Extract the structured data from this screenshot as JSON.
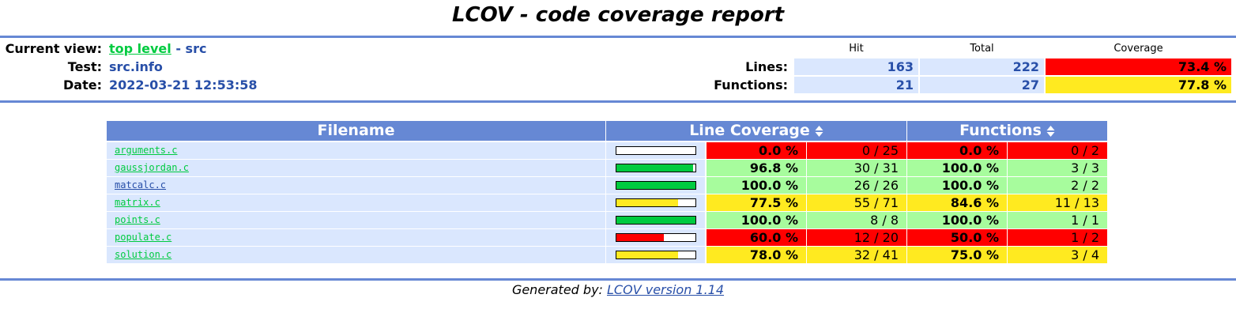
{
  "title": "LCOV - code coverage report",
  "info": {
    "current_view_label": "Current view:",
    "current_view_link": "top level",
    "current_view_rest": "- src",
    "test_label": "Test:",
    "test_value": "src.info",
    "date_label": "Date:",
    "date_value": "2022-03-21 12:53:58"
  },
  "summary": {
    "hit_header": "Hit",
    "total_header": "Total",
    "coverage_header": "Coverage",
    "lines_label": "Lines:",
    "lines_hit": "163",
    "lines_total": "222",
    "lines_coverage": "73.4 %",
    "functions_label": "Functions:",
    "functions_hit": "21",
    "functions_total": "27",
    "functions_coverage": "77.8 %"
  },
  "table": {
    "headers": {
      "filename": "Filename",
      "line_coverage": "Line Coverage",
      "functions": "Functions"
    },
    "rows": [
      {
        "file": "arguments.c",
        "bar_percent": 0,
        "line_pct": "0.0 %",
        "line_cnt": "0 / 25",
        "func_pct": "0.0 %",
        "func_cnt": "0 / 2",
        "line_level": "red",
        "func_level": "red"
      },
      {
        "file": "gaussjordan.c",
        "bar_percent": 96.8,
        "line_pct": "96.8 %",
        "line_cnt": "30 / 31",
        "func_pct": "100.0 %",
        "func_cnt": "3 / 3",
        "line_level": "green",
        "func_level": "green"
      },
      {
        "file": "matcalc.c",
        "bar_percent": 100,
        "line_pct": "100.0 %",
        "line_cnt": "26 / 26",
        "func_pct": "100.0 %",
        "func_cnt": "2 / 2",
        "line_level": "green",
        "func_level": "green"
      },
      {
        "file": "matrix.c",
        "bar_percent": 77.5,
        "line_pct": "77.5 %",
        "line_cnt": "55 / 71",
        "func_pct": "84.6 %",
        "func_cnt": "11 / 13",
        "line_level": "yellow",
        "func_level": "yellow"
      },
      {
        "file": "points.c",
        "bar_percent": 100,
        "line_pct": "100.0 %",
        "line_cnt": "8 / 8",
        "func_pct": "100.0 %",
        "func_cnt": "1 / 1",
        "line_level": "green",
        "func_level": "green"
      },
      {
        "file": "populate.c",
        "bar_percent": 60,
        "line_pct": "60.0 %",
        "line_cnt": "12 / 20",
        "func_pct": "50.0 %",
        "func_cnt": "1 / 2",
        "line_level": "red",
        "func_level": "red"
      },
      {
        "file": "solution.c",
        "bar_percent": 78,
        "line_pct": "78.0 %",
        "line_cnt": "32 / 41",
        "func_pct": "75.0 %",
        "func_cnt": "3 / 4",
        "line_level": "yellow",
        "func_level": "yellow"
      }
    ]
  },
  "footer": {
    "prefix": "Generated by:",
    "link": "LCOV version 1.14"
  },
  "colors": {
    "accent": "#6688d4",
    "bar_green": "#00cb40",
    "bar_yellow": "#ffea20",
    "bar_red": "#ff0000",
    "level_green": "#a7fc9d"
  }
}
